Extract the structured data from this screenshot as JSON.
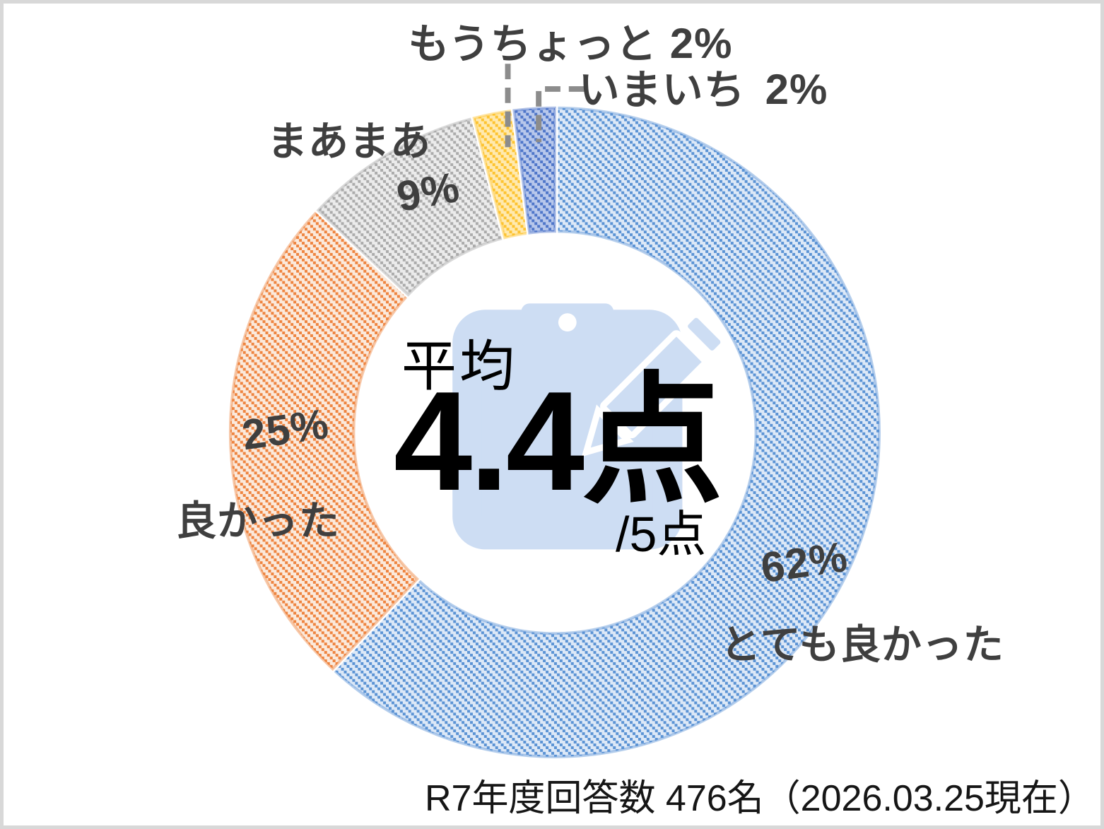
{
  "chart_data": {
    "type": "pie",
    "subtype": "donut",
    "title": "",
    "categories": [
      "とても良かった",
      "良かった",
      "まあまあ",
      "もうちょっと",
      "いまいち"
    ],
    "values": [
      62,
      25,
      9,
      2,
      2
    ],
    "unit": "%",
    "start_angle_deg": 0,
    "direction": "clockwise",
    "inner_radius_ratio": 0.62,
    "pattern": "dashed-downward-diagonal",
    "label_color": "#3f3f3f",
    "leader_color": "#8c8c8c",
    "watermark_icon": "clipboard-pencil",
    "watermark_color": "#cdddf3",
    "segments": [
      {
        "key": "very-good",
        "label": "とても良かった",
        "value": 62,
        "pct": "62%",
        "stripe": "#5b93d4",
        "fill": "#dce8f7"
      },
      {
        "key": "good",
        "label": "良かった",
        "value": 25,
        "pct": "25%",
        "stripe": "#ee8440",
        "fill": "#fbe9db"
      },
      {
        "key": "so-so",
        "label": "まあまあ",
        "value": 9,
        "pct": "9%",
        "stripe": "#ababab",
        "fill": "#ebebeb"
      },
      {
        "key": "a-bit-more",
        "label": "もうちょっと",
        "value": 2,
        "pct": "2%",
        "stripe": "#fdc330",
        "fill": "#ffe9ae"
      },
      {
        "key": "not-great",
        "label": "いまいち",
        "value": 2,
        "pct": "2%",
        "stripe": "#4f76c9",
        "fill": "#b7c7eb"
      }
    ],
    "center_label": {
      "prefix": "平均",
      "score": "4.4点",
      "scale": "/5点"
    }
  },
  "footer": {
    "note": "R7年度回答数  476名（2026.03.25現在）"
  }
}
